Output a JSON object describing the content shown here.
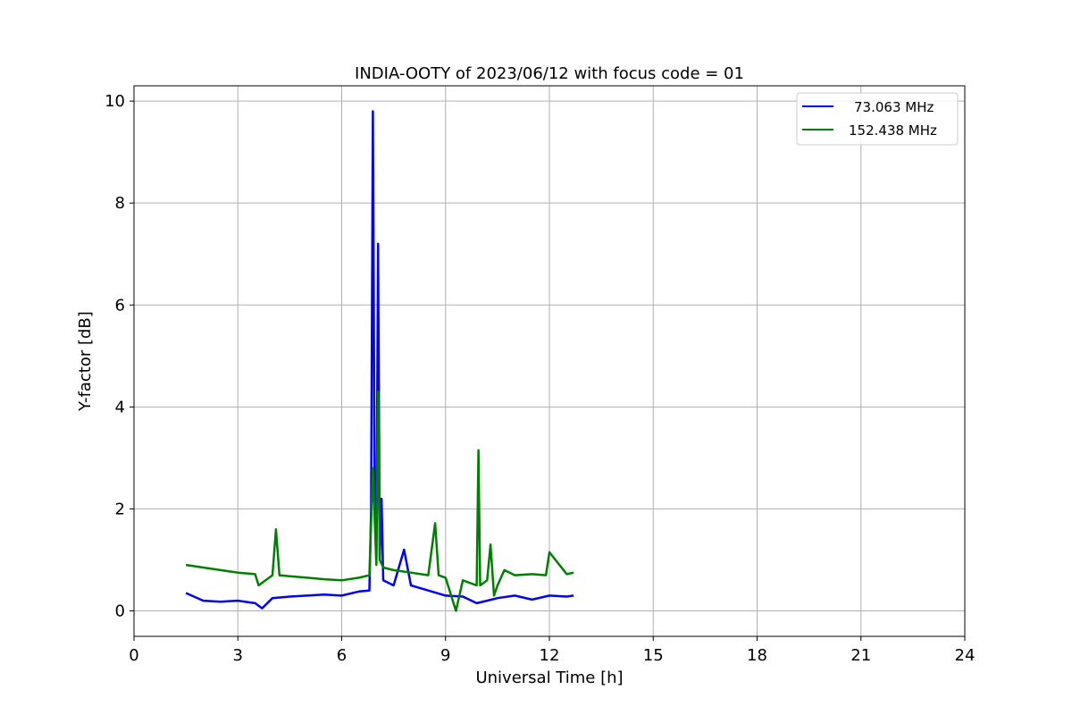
{
  "chart_data": {
    "type": "line",
    "title": "INDIA-OOTY of 2023/06/12 with focus code = 01",
    "xlabel": "Universal Time [h]",
    "ylabel": "Y-factor [dB]",
    "xlim": [
      0,
      24
    ],
    "ylim": [
      -0.5,
      10.3
    ],
    "xticks": [
      0,
      3,
      6,
      9,
      12,
      15,
      18,
      21,
      24
    ],
    "yticks": [
      0,
      2,
      4,
      6,
      8,
      10
    ],
    "grid": true,
    "legend_position": "top-right",
    "series": [
      {
        "name": "73.063 MHz",
        "color": "#0000ff",
        "x": [
          1.5,
          2.0,
          2.5,
          3.0,
          3.5,
          3.7,
          4.0,
          4.5,
          5.0,
          5.5,
          6.0,
          6.5,
          6.8,
          6.85,
          6.9,
          6.95,
          7.0,
          7.05,
          7.1,
          7.15,
          7.2,
          7.5,
          7.8,
          8.0,
          8.5,
          9.0,
          9.5,
          9.9,
          10.2,
          10.5,
          11.0,
          11.5,
          12.0,
          12.5,
          12.7
        ],
        "y": [
          0.35,
          0.2,
          0.18,
          0.2,
          0.15,
          0.05,
          0.25,
          0.28,
          0.3,
          0.32,
          0.3,
          0.38,
          0.4,
          2.0,
          9.8,
          2.5,
          1.0,
          7.2,
          1.0,
          2.2,
          0.6,
          0.5,
          1.2,
          0.5,
          0.4,
          0.3,
          0.28,
          0.15,
          0.2,
          0.25,
          0.3,
          0.22,
          0.3,
          0.28,
          0.3
        ]
      },
      {
        "name": "152.438 MHz",
        "color": "#008000",
        "x": [
          1.5,
          2.0,
          2.5,
          3.0,
          3.5,
          3.6,
          4.0,
          4.1,
          4.2,
          4.5,
          5.0,
          5.5,
          6.0,
          6.5,
          6.8,
          6.9,
          7.0,
          7.05,
          7.1,
          7.2,
          7.5,
          8.0,
          8.5,
          8.7,
          8.8,
          9.0,
          9.3,
          9.5,
          9.9,
          9.95,
          10.0,
          10.2,
          10.3,
          10.4,
          10.5,
          10.7,
          11.0,
          11.5,
          11.9,
          12.0,
          12.5,
          12.7
        ],
        "y": [
          0.9,
          0.85,
          0.8,
          0.75,
          0.72,
          0.5,
          0.7,
          1.6,
          0.7,
          0.68,
          0.65,
          0.62,
          0.6,
          0.65,
          0.7,
          2.8,
          0.9,
          4.3,
          1.0,
          0.85,
          0.8,
          0.75,
          0.7,
          1.72,
          0.7,
          0.65,
          0.0,
          0.6,
          0.5,
          3.15,
          0.5,
          0.6,
          1.3,
          0.3,
          0.5,
          0.8,
          0.7,
          0.72,
          0.7,
          1.15,
          0.72,
          0.75
        ]
      }
    ]
  }
}
